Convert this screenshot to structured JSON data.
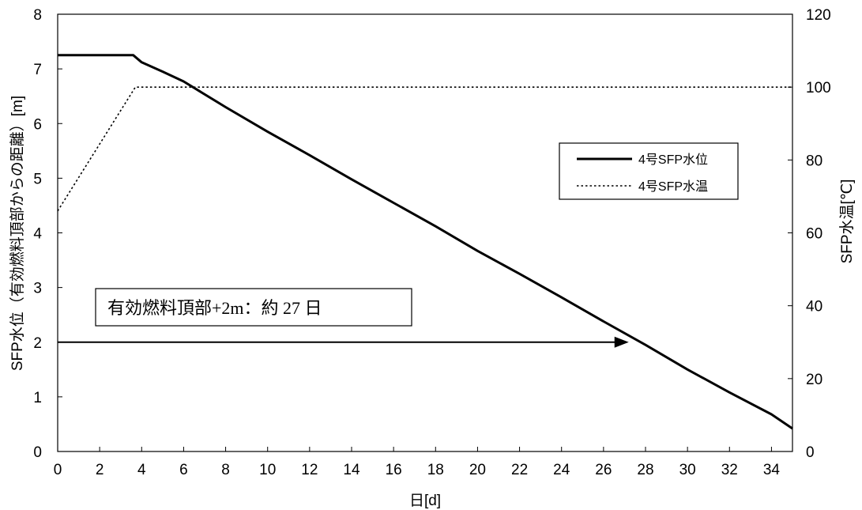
{
  "chart_data": {
    "type": "line",
    "title": "",
    "xlabel": "日[d]",
    "ylabel_left": "SFP水位（有効燃料頂部からの距離）[m]",
    "ylabel_right": "SFP水温[℃]",
    "xlim": [
      0,
      35
    ],
    "ylim_left": [
      0,
      8
    ],
    "ylim_right": [
      0,
      120
    ],
    "x_ticks": [
      "0",
      "2",
      "4",
      "6",
      "8",
      "10",
      "12",
      "14",
      "16",
      "18",
      "20",
      "22",
      "24",
      "26",
      "28",
      "30",
      "32",
      "34"
    ],
    "y_left_ticks": [
      "0",
      "1",
      "2",
      "3",
      "4",
      "5",
      "6",
      "7",
      "8"
    ],
    "y_right_ticks": [
      "0",
      "20",
      "40",
      "60",
      "80",
      "100",
      "120"
    ],
    "grid": false,
    "legend_position": "right",
    "series": [
      {
        "name": "4号SFP水位",
        "axis": "left",
        "style": "solid",
        "x": [
          0,
          3.6,
          4,
          5,
          6,
          8,
          10,
          12,
          14,
          16,
          18,
          20,
          22,
          24,
          26,
          28,
          30,
          32,
          34,
          35
        ],
        "y": [
          7.25,
          7.25,
          7.12,
          6.95,
          6.77,
          6.3,
          5.85,
          5.42,
          4.98,
          4.55,
          4.12,
          3.67,
          3.25,
          2.82,
          2.38,
          1.95,
          1.5,
          1.08,
          0.68,
          0.42
        ]
      },
      {
        "name": "4号SFP水温",
        "axis": "right",
        "style": "dotted",
        "x": [
          0,
          3.7,
          35
        ],
        "y": [
          66,
          100,
          100
        ]
      }
    ],
    "annotations": [
      {
        "text": "有効燃料頂部+2m：約 27 日",
        "arrow_from": [
          0,
          2
        ],
        "arrow_to": [
          27.2,
          2
        ]
      }
    ]
  }
}
